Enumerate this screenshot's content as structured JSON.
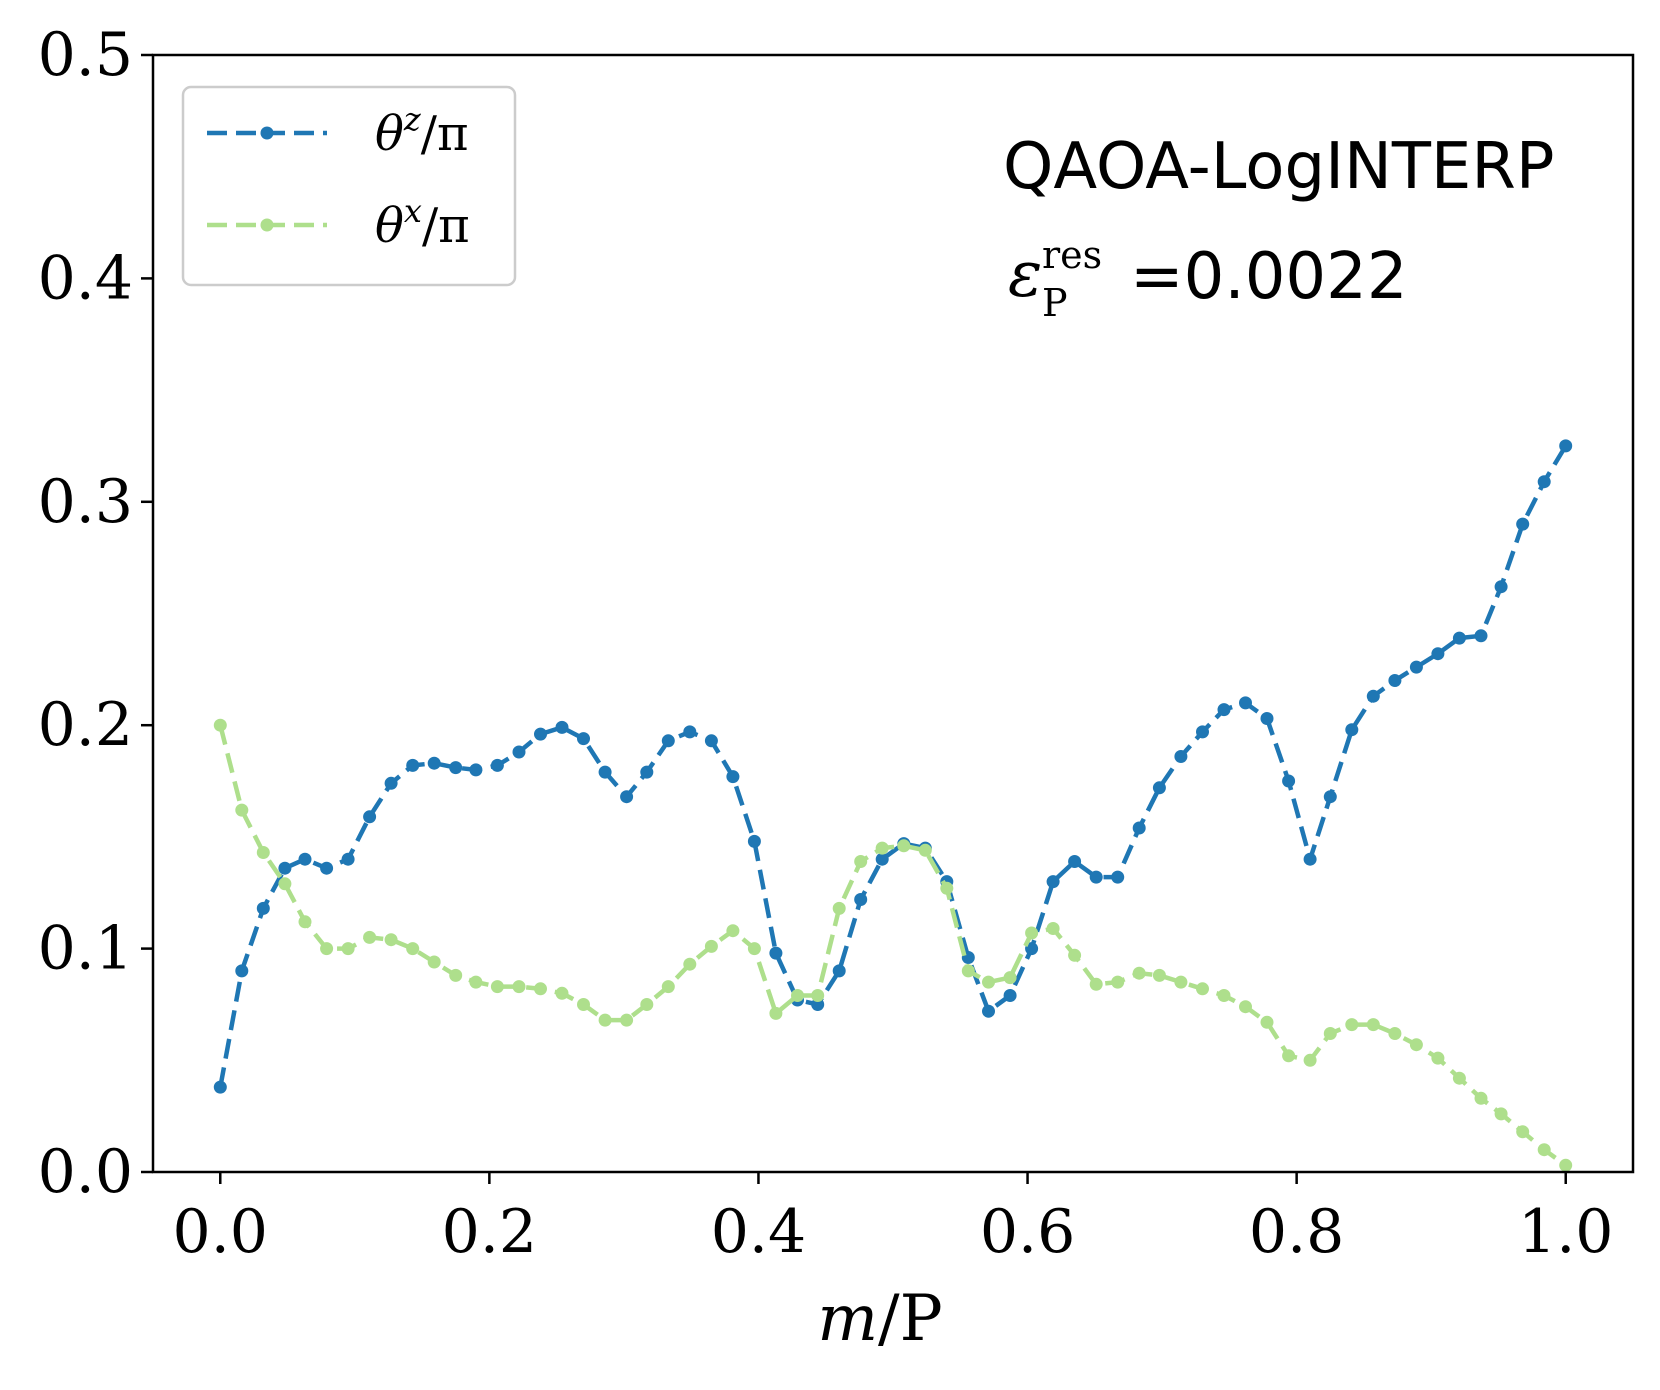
{
  "chart_data": {
    "type": "line",
    "title": "",
    "xlabel": "m/P",
    "ylabel": "",
    "xlim": [
      -0.05,
      1.05
    ],
    "ylim": [
      0.0,
      0.5
    ],
    "xticks": [
      "0.0",
      "0.2",
      "0.4",
      "0.6",
      "0.8",
      "1.0"
    ],
    "yticks": [
      "0.0",
      "0.1",
      "0.2",
      "0.3",
      "0.4",
      "0.5"
    ],
    "legend_position": "top-left",
    "annotation": {
      "method": "QAOA-LogINTERP",
      "eps_symbol": "ε",
      "eps_sub": "P",
      "eps_sup": "res",
      "eps_value": "=0.0022"
    },
    "series": [
      {
        "name": "θ^z/π",
        "legend_main": "θ",
        "legend_sup": "z",
        "legend_tail": "/π",
        "color": "#1f77b4",
        "x": [
          0.0,
          0.016,
          0.032,
          0.048,
          0.063,
          0.079,
          0.095,
          0.111,
          0.127,
          0.143,
          0.159,
          0.175,
          0.19,
          0.206,
          0.222,
          0.238,
          0.254,
          0.27,
          0.286,
          0.302,
          0.317,
          0.333,
          0.349,
          0.365,
          0.381,
          0.397,
          0.413,
          0.429,
          0.444,
          0.46,
          0.476,
          0.492,
          0.508,
          0.524,
          0.54,
          0.556,
          0.571,
          0.587,
          0.603,
          0.619,
          0.635,
          0.651,
          0.667,
          0.683,
          0.698,
          0.714,
          0.73,
          0.746,
          0.762,
          0.778,
          0.794,
          0.81,
          0.825,
          0.841,
          0.857,
          0.873,
          0.889,
          0.905,
          0.921,
          0.937,
          0.952,
          0.968,
          0.984,
          1.0
        ],
        "values": [
          0.038,
          0.09,
          0.118,
          0.136,
          0.14,
          0.136,
          0.14,
          0.159,
          0.174,
          0.182,
          0.183,
          0.181,
          0.18,
          0.182,
          0.188,
          0.196,
          0.199,
          0.194,
          0.179,
          0.168,
          0.179,
          0.193,
          0.197,
          0.193,
          0.177,
          0.148,
          0.098,
          0.077,
          0.075,
          0.09,
          0.122,
          0.14,
          0.147,
          0.145,
          0.13,
          0.096,
          0.072,
          0.079,
          0.1,
          0.13,
          0.139,
          0.132,
          0.132,
          0.154,
          0.172,
          0.186,
          0.197,
          0.207,
          0.21,
          0.203,
          0.175,
          0.14,
          0.168,
          0.198,
          0.213,
          0.22,
          0.226,
          0.232,
          0.239,
          0.24,
          0.262,
          0.29,
          0.309,
          0.325
        ]
      },
      {
        "name": "θ^x/π",
        "legend_main": "θ",
        "legend_sup": "x",
        "legend_tail": "/π",
        "color": "#aedf8c",
        "x": [
          0.0,
          0.016,
          0.032,
          0.048,
          0.063,
          0.079,
          0.095,
          0.111,
          0.127,
          0.143,
          0.159,
          0.175,
          0.19,
          0.206,
          0.222,
          0.238,
          0.254,
          0.27,
          0.286,
          0.302,
          0.317,
          0.333,
          0.349,
          0.365,
          0.381,
          0.397,
          0.413,
          0.429,
          0.444,
          0.46,
          0.476,
          0.492,
          0.508,
          0.524,
          0.54,
          0.556,
          0.571,
          0.587,
          0.603,
          0.619,
          0.635,
          0.651,
          0.667,
          0.683,
          0.698,
          0.714,
          0.73,
          0.746,
          0.762,
          0.778,
          0.794,
          0.81,
          0.825,
          0.841,
          0.857,
          0.873,
          0.889,
          0.905,
          0.921,
          0.937,
          0.952,
          0.968,
          0.984,
          1.0
        ],
        "values": [
          0.2,
          0.162,
          0.143,
          0.129,
          0.112,
          0.1,
          0.1,
          0.105,
          0.104,
          0.1,
          0.094,
          0.088,
          0.085,
          0.083,
          0.083,
          0.082,
          0.08,
          0.075,
          0.068,
          0.068,
          0.075,
          0.083,
          0.093,
          0.101,
          0.108,
          0.1,
          0.071,
          0.079,
          0.079,
          0.118,
          0.139,
          0.145,
          0.146,
          0.144,
          0.127,
          0.09,
          0.085,
          0.087,
          0.107,
          0.109,
          0.097,
          0.084,
          0.085,
          0.089,
          0.088,
          0.085,
          0.082,
          0.079,
          0.074,
          0.067,
          0.052,
          0.05,
          0.062,
          0.066,
          0.066,
          0.062,
          0.057,
          0.051,
          0.042,
          0.033,
          0.026,
          0.018,
          0.01,
          0.003
        ]
      }
    ]
  }
}
